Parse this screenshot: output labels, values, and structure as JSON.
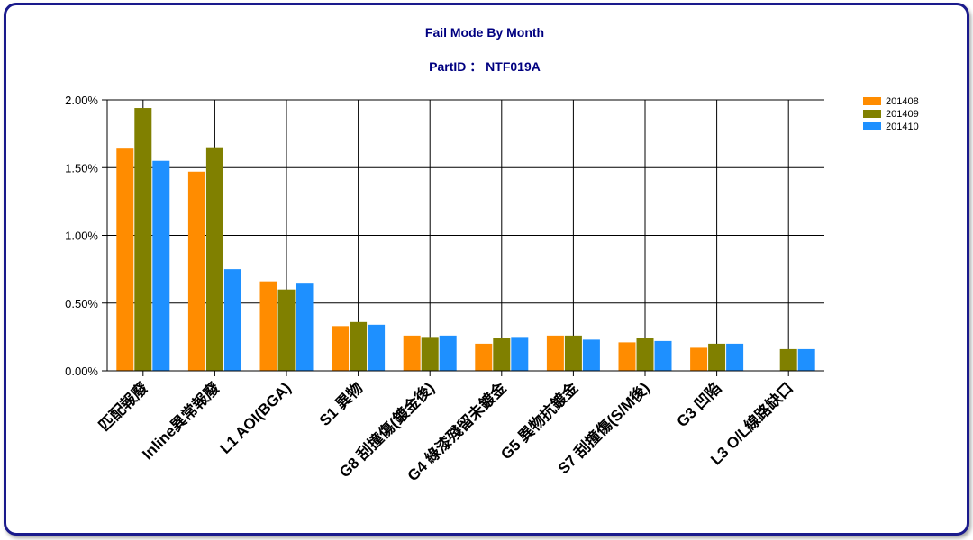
{
  "chart_data": {
    "type": "bar",
    "title": "Fail Mode By Month",
    "subtitle": "PartID ： NTF019A",
    "xlabel": "",
    "ylabel": "",
    "ylim": [
      0,
      0.02
    ],
    "yticks": [
      "0.00%",
      "0.50%",
      "1.00%",
      "1.50%",
      "2.00%"
    ],
    "grid": true,
    "legend_position": "top-right",
    "categories": [
      "匹配報廢",
      "Inline異常報廢",
      "L1 AOI(BGA)",
      "S1 異物",
      "G8 刮撞傷(鍍金後)",
      "G4 綠漆殘留未鍍金",
      "G5 異物抗鍍金",
      "S7 刮撞傷(S/M後)",
      "G3 凹陷",
      "L3 O/L線路缺口"
    ],
    "series": [
      {
        "name": "201408",
        "color": "#ff8c00",
        "values": [
          0.0164,
          0.0147,
          0.0066,
          0.0033,
          0.0026,
          0.002,
          0.0026,
          0.0021,
          0.0017,
          null
        ]
      },
      {
        "name": "201409",
        "color": "#808000",
        "values": [
          0.0194,
          0.0165,
          0.006,
          0.0036,
          0.0025,
          0.0024,
          0.0026,
          0.0024,
          0.002,
          0.0016
        ]
      },
      {
        "name": "201410",
        "color": "#1e90ff",
        "values": [
          0.0155,
          0.0075,
          0.0065,
          0.0034,
          0.0026,
          0.0025,
          0.0023,
          0.0022,
          0.002,
          0.0016
        ]
      }
    ]
  }
}
